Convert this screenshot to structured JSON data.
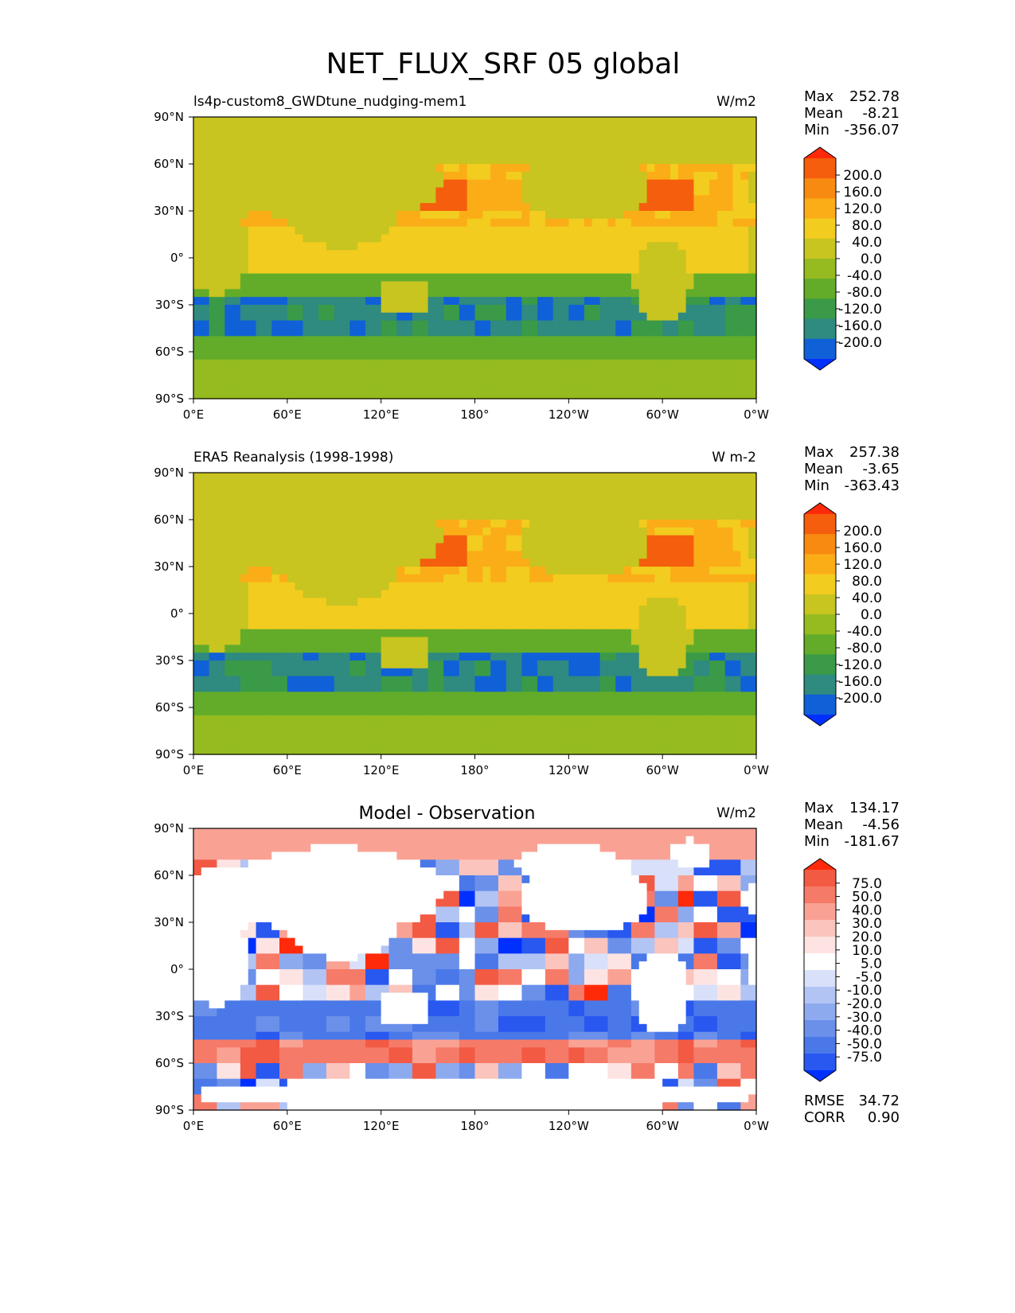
{
  "figure_title": "NET_FLUX_SRF 05 global",
  "colors": {
    "main_scale": [
      "#0030ff",
      "#1060d8",
      "#2f8a80",
      "#3a9a48",
      "#62ac2a",
      "#95bb20",
      "#c8c420",
      "#f2cc1e",
      "#fbad18",
      "#f88a12",
      "#f45e0c",
      "#ff2a0a"
    ],
    "diff_scale": [
      "#0030ff",
      "#2858f0",
      "#4a78e8",
      "#6a90ea",
      "#8eaaee",
      "#b2c4f4",
      "#d8e0fa",
      "#ffffff",
      "#fde4e2",
      "#fbc4bc",
      "#f9a294",
      "#f67a68",
      "#f25a44",
      "#ff2a0a"
    ]
  },
  "chart_data": [
    {
      "type": "heatmap",
      "panel": "model",
      "title": "",
      "left_label": "ls4p-custom8_GWDtune_nudging-mem1",
      "units": "W/m2",
      "stats": [
        {
          "k": "Max",
          "v": "252.78"
        },
        {
          "k": "Mean",
          "v": "-8.21"
        },
        {
          "k": "Min",
          "v": "-356.07"
        }
      ],
      "xticks": [
        "0°E",
        "60°E",
        "120°E",
        "180°",
        "120°W",
        "60°W",
        "0°W"
      ],
      "yticks": [
        "90°N",
        "60°N",
        "30°N",
        "0°",
        "30°S",
        "60°S",
        "90°S"
      ],
      "colorbar_labels": [
        "200.0",
        "160.0",
        "120.0",
        "80.0",
        "40.0",
        "0.0",
        "-40.0",
        "-80.0",
        "-120.0",
        "-160.0",
        "-200.0"
      ]
    },
    {
      "type": "heatmap",
      "panel": "obs",
      "title": "",
      "left_label": "ERA5 Reanalysis (1998-1998)",
      "units": "W m-2",
      "stats": [
        {
          "k": "Max",
          "v": "257.38"
        },
        {
          "k": "Mean",
          "v": "-3.65"
        },
        {
          "k": "Min",
          "v": "-363.43"
        }
      ],
      "xticks": [
        "0°E",
        "60°E",
        "120°E",
        "180°",
        "120°W",
        "60°W",
        "0°W"
      ],
      "yticks": [
        "90°N",
        "60°N",
        "30°N",
        "0°",
        "30°S",
        "60°S",
        "90°S"
      ],
      "colorbar_labels": [
        "200.0",
        "160.0",
        "120.0",
        "80.0",
        "40.0",
        "0.0",
        "-40.0",
        "-80.0",
        "-120.0",
        "-160.0",
        "-200.0"
      ]
    },
    {
      "type": "heatmap",
      "panel": "diff",
      "title": "Model - Observation",
      "left_label": "",
      "units": "W/m2",
      "stats": [
        {
          "k": "Max",
          "v": "134.17"
        },
        {
          "k": "Mean",
          "v": "-4.56"
        },
        {
          "k": "Min",
          "v": "-181.67"
        }
      ],
      "extra_stats": [
        {
          "k": "RMSE",
          "v": "34.72"
        },
        {
          "k": "CORR",
          "v": "0.90"
        }
      ],
      "xticks": [
        "0°E",
        "60°E",
        "120°E",
        "180°",
        "120°W",
        "60°W",
        "0°W"
      ],
      "yticks": [
        "90°N",
        "60°N",
        "30°N",
        "0°",
        "30°S",
        "60°S",
        "90°S"
      ],
      "colorbar_labels": [
        "75.0",
        "50.0",
        "40.0",
        "30.0",
        "20.0",
        "10.0",
        "5.0",
        "-5.0",
        "-10.0",
        "-20.0",
        "-30.0",
        "-40.0",
        "-50.0",
        "-75.0"
      ]
    }
  ]
}
